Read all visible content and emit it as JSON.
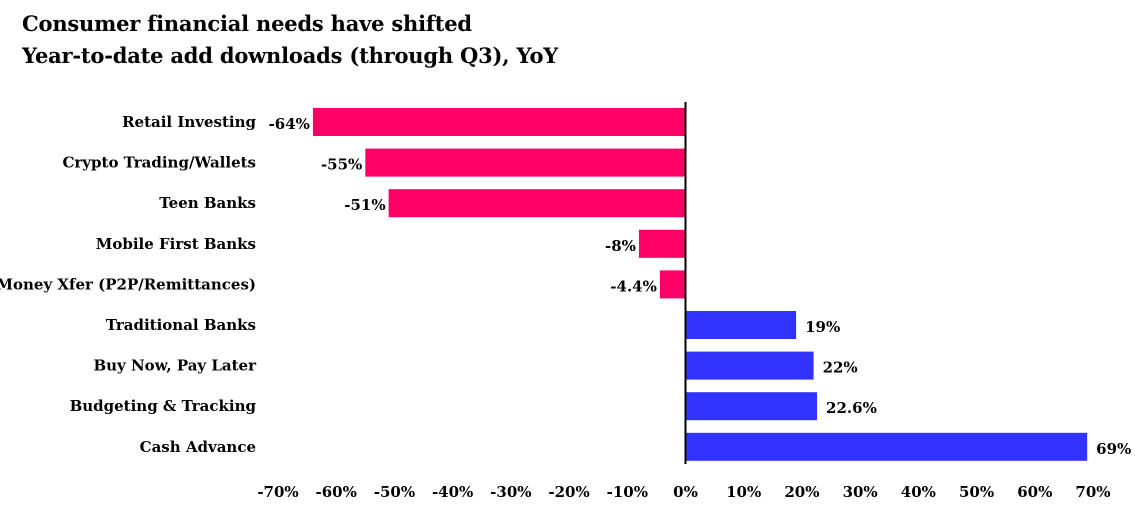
{
  "chart_data": {
    "type": "bar",
    "orientation": "horizontal",
    "title": "Consumer financial needs have shifted",
    "subtitle": "Year-to-date add downloads (through Q3), YoY",
    "categories": [
      "Retail Investing",
      "Crypto Trading/Wallets",
      "Teen Banks",
      "Mobile First Banks",
      "Money Xfer (P2P/Remittances)",
      "Traditional Banks",
      "Buy Now, Pay Later",
      "Budgeting & Tracking",
      "Cash Advance"
    ],
    "values": [
      -64,
      -55,
      -51,
      -8,
      -4.4,
      19,
      22,
      22.6,
      69
    ],
    "data_labels": [
      "-64%",
      "-55%",
      "-51%",
      "-8%",
      "-4.4%",
      "19%",
      "22%",
      "22.6%",
      "69%"
    ],
    "xlim": [
      -70,
      70
    ],
    "xticks": [
      -70,
      -60,
      -50,
      -40,
      -30,
      -20,
      -10,
      0,
      10,
      20,
      30,
      40,
      50,
      60,
      70
    ],
    "xtick_labels": [
      "-70%",
      "-60%",
      "-50%",
      "-40%",
      "-30%",
      "-20%",
      "-10%",
      "0%",
      "10%",
      "20%",
      "30%",
      "40%",
      "50%",
      "60%",
      "70%"
    ],
    "xlabel": "",
    "ylabel": "",
    "grid": false,
    "legend": "none",
    "colors": {
      "negative": "#ff0066",
      "positive": "#3333ff"
    }
  }
}
